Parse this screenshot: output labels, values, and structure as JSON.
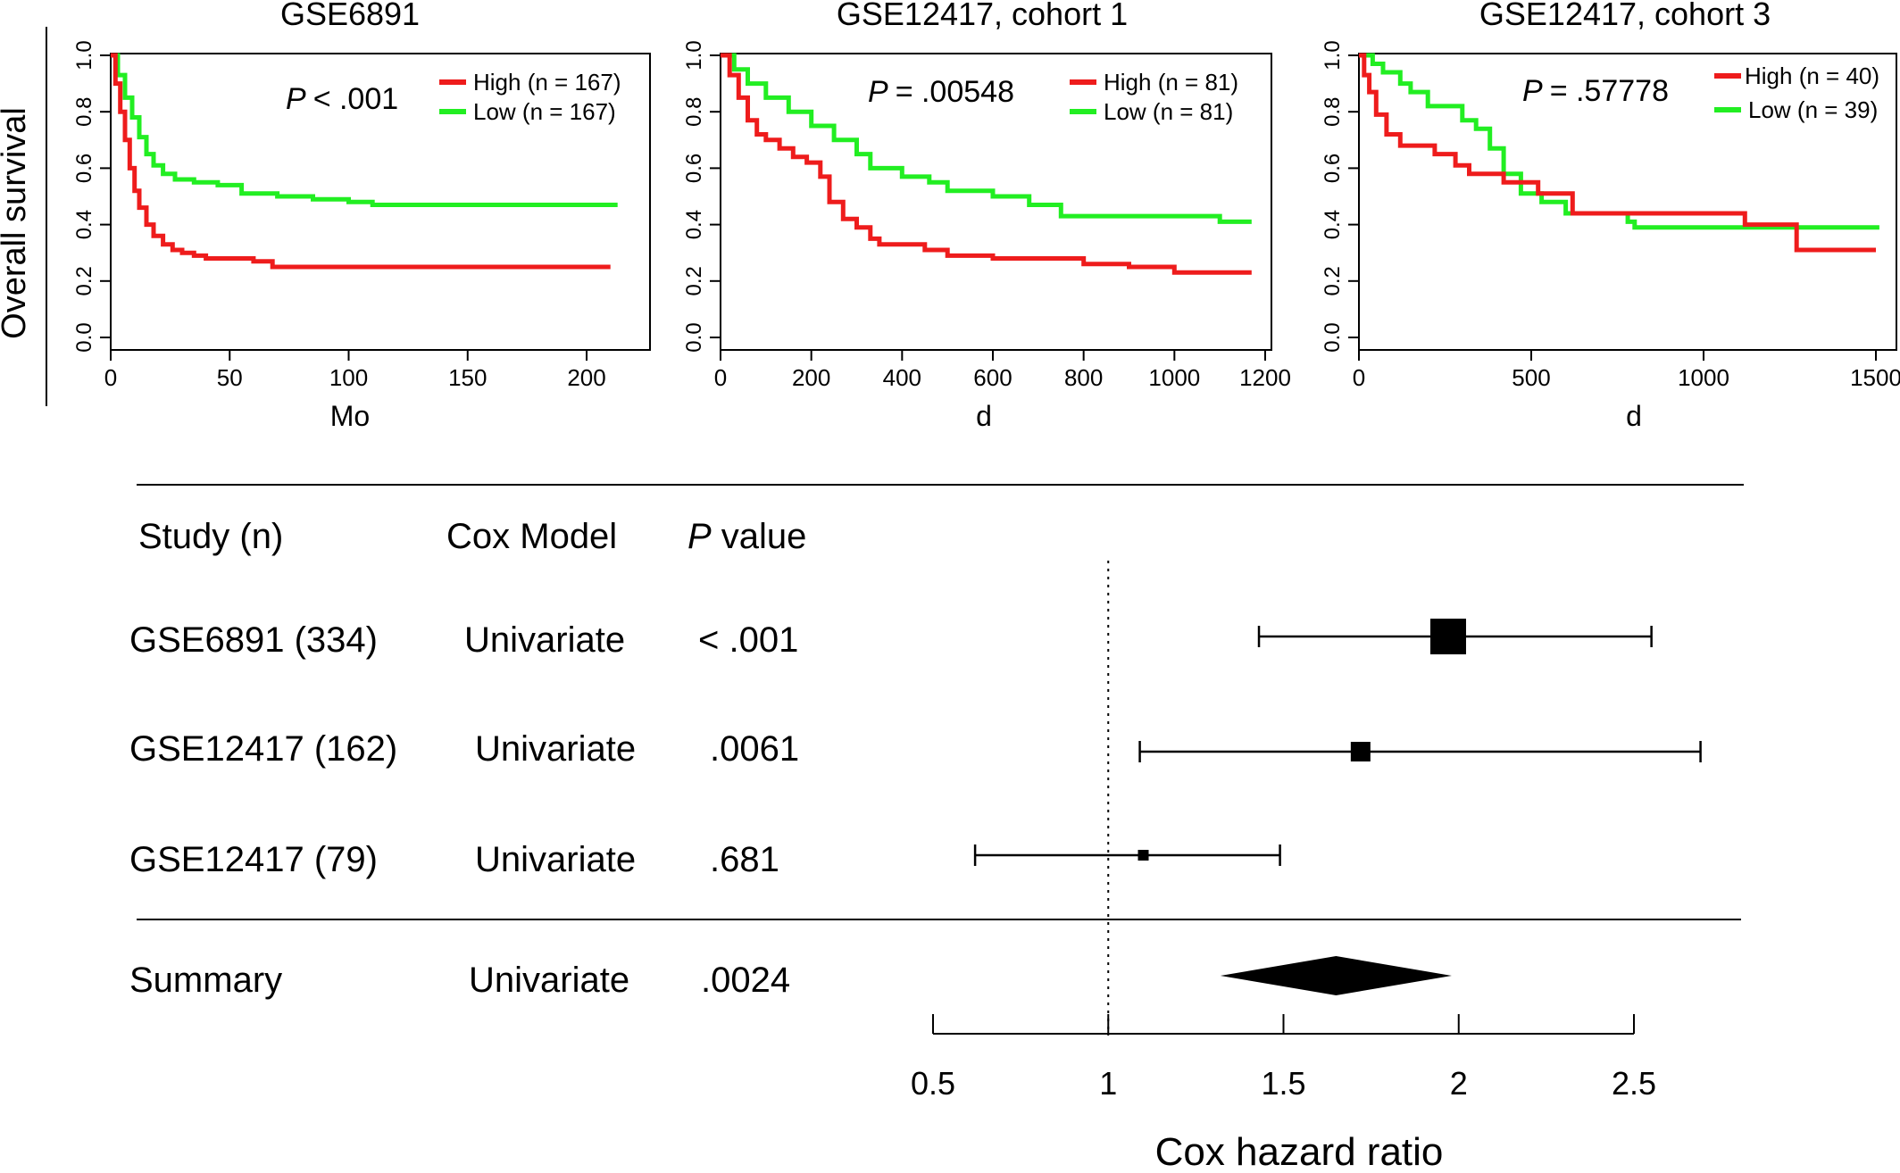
{
  "y_axis_label": "Overall survival",
  "chart_data": [
    {
      "type": "line",
      "title": "GSE6891",
      "xlabel": "Mo",
      "ylabel": "Overall survival",
      "xlim": [
        0,
        215
      ],
      "ylim": [
        0,
        1
      ],
      "x_ticks": [
        "0",
        "50",
        "100",
        "150",
        "200"
      ],
      "x_tick_values": [
        0,
        50,
        100,
        150,
        200
      ],
      "y_ticks": [
        "0.0",
        "0.2",
        "0.4",
        "0.6",
        "0.8",
        "1.0"
      ],
      "y_tick_values": [
        0,
        0.2,
        0.4,
        0.6,
        0.8,
        1.0
      ],
      "p_label": "P",
      "p_value": "< .001",
      "legend_position": "top-right",
      "series": [
        {
          "name": "High (n = 167)",
          "color": "#ee1c1c",
          "points": [
            [
              0,
              1.0
            ],
            [
              2,
              0.9
            ],
            [
              4,
              0.8
            ],
            [
              6,
              0.7
            ],
            [
              8,
              0.6
            ],
            [
              10,
              0.52
            ],
            [
              12,
              0.46
            ],
            [
              15,
              0.4
            ],
            [
              18,
              0.36
            ],
            [
              22,
              0.33
            ],
            [
              26,
              0.31
            ],
            [
              30,
              0.3
            ],
            [
              35,
              0.29
            ],
            [
              40,
              0.28
            ],
            [
              50,
              0.28
            ],
            [
              60,
              0.27
            ],
            [
              68,
              0.25
            ],
            [
              80,
              0.25
            ],
            [
              150,
              0.25
            ],
            [
              210,
              0.25
            ]
          ]
        },
        {
          "name": "Low (n = 167)",
          "color": "#22ee22",
          "points": [
            [
              0,
              1.0
            ],
            [
              3,
              0.93
            ],
            [
              6,
              0.85
            ],
            [
              9,
              0.78
            ],
            [
              12,
              0.71
            ],
            [
              15,
              0.65
            ],
            [
              18,
              0.61
            ],
            [
              22,
              0.58
            ],
            [
              27,
              0.56
            ],
            [
              35,
              0.55
            ],
            [
              45,
              0.54
            ],
            [
              55,
              0.51
            ],
            [
              70,
              0.5
            ],
            [
              85,
              0.49
            ],
            [
              100,
              0.48
            ],
            [
              110,
              0.47
            ],
            [
              150,
              0.47
            ],
            [
              213,
              0.47
            ]
          ]
        }
      ]
    },
    {
      "type": "line",
      "title": "GSE12417, cohort 1",
      "xlabel": "d",
      "ylabel": "",
      "xlim": [
        0,
        1200
      ],
      "ylim": [
        0,
        1
      ],
      "x_ticks": [
        "0",
        "200",
        "400",
        "600",
        "800",
        "1000",
        "1200"
      ],
      "x_tick_values": [
        0,
        200,
        400,
        600,
        800,
        1000,
        1200
      ],
      "y_ticks": [
        "0.0",
        "0.2",
        "0.4",
        "0.6",
        "0.8",
        "1.0"
      ],
      "y_tick_values": [
        0,
        0.2,
        0.4,
        0.6,
        0.8,
        1.0
      ],
      "p_label": "P",
      "p_value": "= .00548",
      "legend_position": "top-right",
      "series": [
        {
          "name": "High (n = 81)",
          "color": "#ee1c1c",
          "points": [
            [
              0,
              1.0
            ],
            [
              20,
              0.93
            ],
            [
              40,
              0.85
            ],
            [
              60,
              0.77
            ],
            [
              80,
              0.72
            ],
            [
              100,
              0.7
            ],
            [
              130,
              0.67
            ],
            [
              160,
              0.64
            ],
            [
              190,
              0.62
            ],
            [
              220,
              0.57
            ],
            [
              240,
              0.48
            ],
            [
              270,
              0.42
            ],
            [
              300,
              0.39
            ],
            [
              330,
              0.35
            ],
            [
              350,
              0.33
            ],
            [
              450,
              0.31
            ],
            [
              500,
              0.29
            ],
            [
              600,
              0.28
            ],
            [
              700,
              0.28
            ],
            [
              800,
              0.26
            ],
            [
              900,
              0.25
            ],
            [
              1000,
              0.23
            ],
            [
              1170,
              0.23
            ]
          ]
        },
        {
          "name": "Low (n = 81)",
          "color": "#22ee22",
          "points": [
            [
              0,
              1.0
            ],
            [
              30,
              0.95
            ],
            [
              60,
              0.9
            ],
            [
              100,
              0.85
            ],
            [
              150,
              0.8
            ],
            [
              200,
              0.75
            ],
            [
              250,
              0.7
            ],
            [
              300,
              0.65
            ],
            [
              330,
              0.6
            ],
            [
              400,
              0.57
            ],
            [
              460,
              0.55
            ],
            [
              500,
              0.52
            ],
            [
              600,
              0.5
            ],
            [
              680,
              0.47
            ],
            [
              750,
              0.43
            ],
            [
              900,
              0.43
            ],
            [
              1100,
              0.41
            ],
            [
              1170,
              0.41
            ]
          ]
        }
      ]
    },
    {
      "type": "line",
      "title": "GSE12417, cohort 3",
      "xlabel": "d",
      "ylabel": "",
      "xlim": [
        0,
        1500
      ],
      "ylim": [
        0,
        1
      ],
      "x_ticks": [
        "0",
        "500",
        "1000",
        "1500"
      ],
      "x_tick_values": [
        0,
        500,
        1000,
        1500
      ],
      "y_ticks": [
        "0.0",
        "0.2",
        "0.4",
        "0.6",
        "0.8",
        "1.0"
      ],
      "y_tick_values": [
        0,
        0.2,
        0.4,
        0.6,
        0.8,
        1.0
      ],
      "p_label": "P",
      "p_value": "= .57778",
      "legend_position": "top-right",
      "series": [
        {
          "name": "High (n = 40)",
          "color": "#ee1c1c",
          "points": [
            [
              0,
              1.0
            ],
            [
              15,
              0.93
            ],
            [
              30,
              0.87
            ],
            [
              50,
              0.79
            ],
            [
              80,
              0.72
            ],
            [
              120,
              0.68
            ],
            [
              220,
              0.65
            ],
            [
              280,
              0.61
            ],
            [
              320,
              0.58
            ],
            [
              420,
              0.55
            ],
            [
              520,
              0.51
            ],
            [
              620,
              0.44
            ],
            [
              800,
              0.44
            ],
            [
              1120,
              0.4
            ],
            [
              1270,
              0.31
            ],
            [
              1500,
              0.31
            ]
          ]
        },
        {
          "name": "Low (n = 39)",
          "color": "#22ee22",
          "points": [
            [
              0,
              1.0
            ],
            [
              40,
              0.97
            ],
            [
              70,
              0.94
            ],
            [
              120,
              0.9
            ],
            [
              150,
              0.87
            ],
            [
              200,
              0.82
            ],
            [
              300,
              0.77
            ],
            [
              340,
              0.74
            ],
            [
              380,
              0.67
            ],
            [
              420,
              0.58
            ],
            [
              470,
              0.51
            ],
            [
              530,
              0.48
            ],
            [
              600,
              0.44
            ],
            [
              780,
              0.41
            ],
            [
              800,
              0.39
            ],
            [
              1000,
              0.39
            ],
            [
              1510,
              0.39
            ]
          ]
        }
      ]
    },
    {
      "type": "forest",
      "xlabel": "Cox hazard ratio",
      "xlim": [
        0.5,
        2.5
      ],
      "x_ticks": [
        "0.5",
        "1",
        "1.5",
        "2",
        "2.5"
      ],
      "x_tick_values": [
        0.5,
        1,
        1.5,
        2,
        2.5
      ],
      "reference_line": 1,
      "columns": [
        {
          "header": "Study (n)"
        },
        {
          "header": "Cox Model"
        },
        {
          "header_italic": "P",
          "header_rest": " value"
        }
      ],
      "rows": [
        {
          "study": "GSE6891 (334)",
          "model": "Univariate",
          "p": "< .001",
          "hr": 1.97,
          "lower": 1.43,
          "upper": 2.55,
          "weight": 1.0
        },
        {
          "study": "GSE12417 (162)",
          "model": "Univariate",
          "p": ".0061",
          "hr": 1.72,
          "lower": 1.09,
          "upper": 2.69,
          "weight": 0.55
        },
        {
          "study": "GSE12417 (79)",
          "model": "Univariate",
          "p": ".681",
          "hr": 1.1,
          "lower": 0.62,
          "upper": 1.49,
          "weight": 0.3
        }
      ],
      "summary": {
        "study": "Summary",
        "model": "Univariate",
        "p": ".0024",
        "hr": 1.65,
        "lower": 1.32,
        "upper": 1.98
      }
    }
  ]
}
